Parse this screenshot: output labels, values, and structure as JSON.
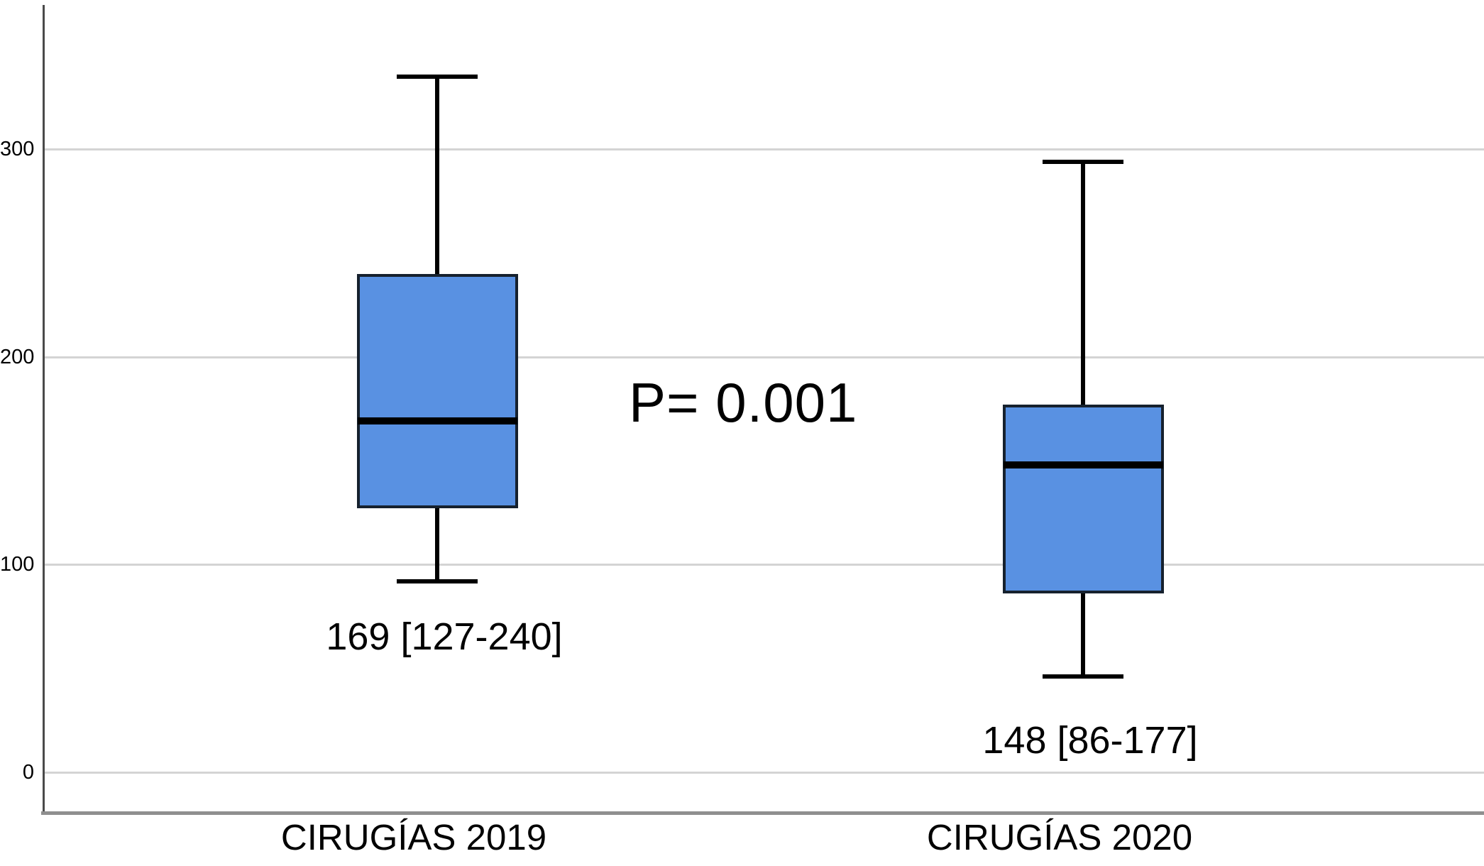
{
  "chart_data": {
    "type": "boxplot",
    "title": "",
    "xlabel": "",
    "ylabel": "",
    "categories": [
      "CIRUGÍAS 2019",
      "CIRUGÍAS 2020"
    ],
    "boxes": [
      {
        "category": "CIRUGÍAS 2019",
        "whisker_low": 92,
        "q1": 127,
        "median": 169,
        "q3": 240,
        "whisker_high": 335,
        "summary_label": "169 [127-240]"
      },
      {
        "category": "CIRUGÍAS 2020",
        "whisker_low": 46,
        "q1": 86,
        "median": 148,
        "q3": 177,
        "whisker_high": 294,
        "summary_label": "148 [86-177]"
      }
    ],
    "annotation": {
      "text": "P= 0.001"
    },
    "y_axis": {
      "ticks": [
        0,
        100,
        200,
        300
      ],
      "tick_labels": [
        "0",
        "100",
        "200",
        "300"
      ],
      "range": [
        -19,
        369
      ],
      "grid": true
    },
    "legend_position": "none",
    "colors": {
      "box_fill": "#5991e2",
      "box_border": "#16212e",
      "median_line": "#000000",
      "whisker": "#000000",
      "gridline": "#d4d4d4",
      "y_axis_line": "#4a4a4a",
      "x_axis_line": "#8f8f8f",
      "text": "#000000",
      "background": "#ffffff"
    }
  }
}
